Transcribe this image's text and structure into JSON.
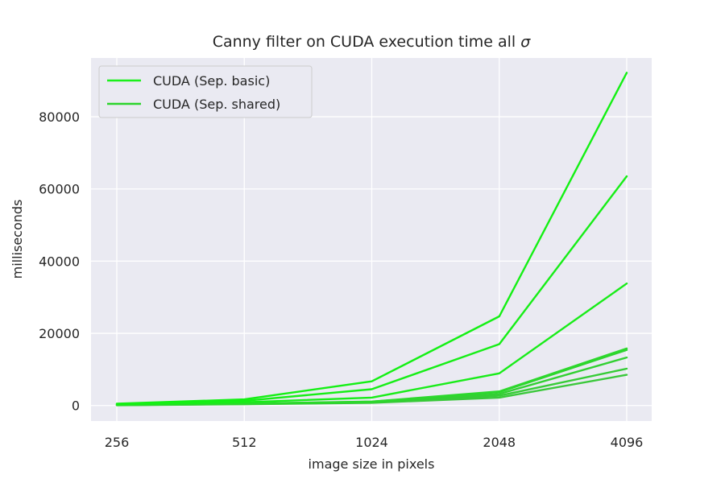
{
  "chart_data": {
    "type": "line",
    "title_main": "Canny filter on CUDA execution time all ",
    "title_symbol": "σ",
    "xlabel": "image size in pixels",
    "ylabel": "milliseconds",
    "categories": [
      "256",
      "512",
      "1024",
      "2048",
      "4096"
    ],
    "y_ticks": [
      0,
      20000,
      40000,
      60000,
      80000
    ],
    "y_tick_labels": [
      "0",
      "20000",
      "40000",
      "60000",
      "80000"
    ],
    "ylim": [
      -4300,
      96300
    ],
    "grid": true,
    "legend_position": "top-left",
    "legend": [
      {
        "label": "CUDA (Sep. basic)",
        "color": "#1cf01c"
      },
      {
        "label": "CUDA (Sep. shared)",
        "color": "#2cd42c"
      }
    ],
    "series": [
      {
        "color": "#13f013",
        "values": [
          500,
          1700,
          6700,
          24700,
          92200
        ]
      },
      {
        "color": "#16ee16",
        "values": [
          400,
          1300,
          4500,
          17000,
          63500
        ]
      },
      {
        "color": "#18ec18",
        "values": [
          300,
          900,
          2200,
          8900,
          33800
        ]
      },
      {
        "color": "#2cd82c",
        "values": [
          150,
          550,
          1100,
          3900,
          15800
        ]
      },
      {
        "color": "#2ed42e",
        "values": [
          150,
          500,
          1050,
          3700,
          15400
        ]
      },
      {
        "color": "#32d032",
        "values": [
          120,
          450,
          950,
          3200,
          13300
        ]
      },
      {
        "color": "#36cc36",
        "values": [
          100,
          400,
          800,
          2700,
          10200
        ]
      },
      {
        "color": "#3ac83a",
        "values": [
          80,
          350,
          750,
          2200,
          8500
        ]
      }
    ]
  }
}
